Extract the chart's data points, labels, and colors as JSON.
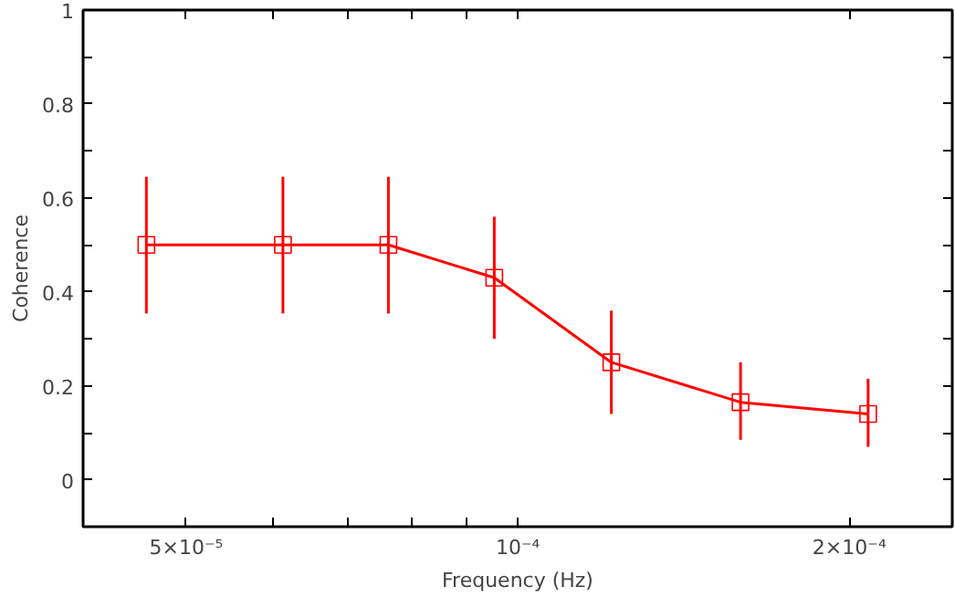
{
  "chart_data": {
    "type": "line",
    "xlabel": "Frequency (Hz)",
    "ylabel": "Coherence",
    "log": "x",
    "x": [
      4.6e-05,
      6.12e-05,
      7.63e-05,
      9.52e-05,
      0.0001216,
      0.0001593,
      0.000208
    ],
    "series": [
      {
        "color": "#ff0000",
        "values": [
          0.5,
          0.5,
          0.5,
          0.43,
          0.25,
          0.165,
          0.14
        ],
        "errors": [
          [
            0.354,
            0.645
          ],
          [
            0.354,
            0.645
          ],
          [
            0.354,
            0.645
          ],
          [
            0.3,
            0.56
          ],
          [
            0.14,
            0.36
          ],
          [
            0.085,
            0.25
          ],
          [
            0.07,
            0.215
          ]
        ]
      }
    ],
    "marker": "square",
    "line_style": "solid",
    "grid": false,
    "xlim": [
      4.03e-05,
      0.000248
    ],
    "xticks": [
      {
        "value": 5e-05,
        "label": "5×10⁻⁵"
      },
      {
        "value": 6e-05,
        "label": null
      },
      {
        "value": 7e-05,
        "label": null
      },
      {
        "value": 8e-05,
        "label": null
      },
      {
        "value": 9e-05,
        "label": null
      },
      {
        "value": 0.0001,
        "label": "10⁻⁴"
      },
      {
        "value": 0.0002,
        "label": "2×10⁻⁴"
      }
    ],
    "ylim": [
      -0.1,
      1
    ],
    "yticks": [
      0,
      {
        "value": 0.1,
        "label": null
      },
      0.2,
      {
        "value": 0.3,
        "label": null
      },
      0.4,
      {
        "value": 0.5,
        "label": null
      },
      0.6,
      {
        "value": 0.7,
        "label": null
      },
      0.8,
      {
        "value": 0.9,
        "label": null
      },
      1
    ]
  }
}
